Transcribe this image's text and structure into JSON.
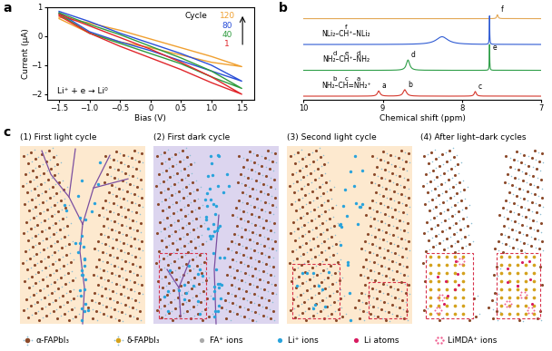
{
  "chart_data": [
    {
      "panel_label": "a",
      "type": "line",
      "xlabel": "Bias (V)",
      "ylabel": "Current (μA)",
      "x": [
        -1.5,
        -1.0,
        -0.5,
        0,
        0.5,
        1.0,
        1.5,
        1.0,
        0.5,
        0,
        -0.5,
        -1.0,
        -1.5
      ],
      "xlim": [
        -1.7,
        1.7
      ],
      "xticks": [
        {
          "value": -1.5,
          "label": "−1.5"
        },
        {
          "value": -1.0,
          "label": "−1.0"
        },
        {
          "value": -0.5,
          "label": "−0.5"
        },
        0,
        0.5,
        1.0,
        1.5
      ],
      "ylim": [
        -2.2,
        1.0
      ],
      "yticks": [
        {
          "value": -2,
          "label": "−2"
        },
        {
          "value": -1,
          "label": "−1"
        },
        0,
        1
      ],
      "series_heading": "Cycle",
      "annotation": "Li⁺ + e → Li⁰",
      "series": [
        {
          "name": "120",
          "color": "#f0a030",
          "values": [
            0.65,
            0.45,
            0.2,
            -0.1,
            -0.4,
            -0.7,
            -1.05,
            -0.9,
            -0.65,
            -0.4,
            -0.2,
            0.1,
            0.6
          ]
        },
        {
          "name": "80",
          "color": "#2b4fd8",
          "values": [
            0.85,
            0.5,
            0.1,
            -0.25,
            -0.6,
            -1.0,
            -1.55,
            -1.2,
            -0.85,
            -0.5,
            -0.2,
            0.15,
            0.8
          ]
        },
        {
          "name": "40",
          "color": "#2e9b3e",
          "values": [
            0.8,
            0.4,
            0.05,
            -0.35,
            -0.75,
            -1.2,
            -1.8,
            -1.4,
            -0.95,
            -0.6,
            -0.25,
            0.1,
            0.75
          ]
        },
        {
          "name": "1",
          "color": "#e0262b",
          "values": [
            0.75,
            0.35,
            -0.05,
            -0.45,
            -0.9,
            -1.4,
            -2.0,
            -1.6,
            -1.15,
            -0.75,
            -0.35,
            0.1,
            0.7
          ]
        }
      ]
    },
    {
      "panel_label": "b",
      "type": "spectrum",
      "xlabel": "Chemical shift (ppm)",
      "xlim": [
        10,
        7
      ],
      "xticks": [
        10,
        9,
        8,
        7
      ],
      "tick_labels": "x",
      "series": [
        {
          "name": null,
          "color": "#e3a857",
          "label_marks": [],
          "peaks": [
            {
              "label": "f",
              "shift": 7.55,
              "intensity": 0.15,
              "width": 0.02
            }
          ]
        },
        {
          "name": "NLi₂–CH⁺–NLi₂",
          "color": "#2f5bd3",
          "label_marks": [
            "f"
          ],
          "peaks": [
            {
              "label": null,
              "shift": 8.25,
              "intensity": 0.3,
              "width": 0.18
            },
            {
              "label": null,
              "shift": 7.65,
              "intensity": 1.1,
              "width": 0.006
            }
          ]
        },
        {
          "name": "NH₂–CH⁺–NH₂",
          "color": "#2e9e48",
          "label_marks": [
            "d",
            "e",
            "d"
          ],
          "peaks": [
            {
              "label": "d",
              "shift": 8.68,
              "intensity": 0.4,
              "width": 0.05
            },
            {
              "label": "e",
              "shift": 7.65,
              "intensity": 1.0,
              "width": 0.006
            }
          ]
        },
        {
          "name": "NH₂–CH=NH₂⁺",
          "color": "#d5372c",
          "label_marks": [
            "b",
            "c",
            "a"
          ],
          "peaks": [
            {
              "label": "a",
              "shift": 9.05,
              "intensity": 0.2,
              "width": 0.04
            },
            {
              "label": "b",
              "shift": 8.72,
              "intensity": 0.25,
              "width": 0.05
            },
            {
              "label": "c",
              "shift": 7.83,
              "intensity": 0.18,
              "width": 0.03
            }
          ]
        }
      ]
    }
  ],
  "diagram": {
    "panel_label": "c",
    "panels": [
      "(1) First light cycle",
      "(2) First dark cycle",
      "(3) Second light cycle",
      "(4) After light–dark cycles"
    ],
    "legend": [
      {
        "label": "α-FAPbI₃",
        "color": "#8b4a2b"
      },
      {
        "label": "δ-FAPbI₃",
        "color": "#d4a21c"
      },
      {
        "label": "FA⁺ ions",
        "color": "#a9a9a9"
      },
      {
        "label": "Li⁺ ions",
        "color": "#29a3dc"
      },
      {
        "label": "Li atoms",
        "color": "#d81b60"
      },
      {
        "label": "LiMDA⁺ ions",
        "color": "#f06292"
      }
    ]
  }
}
